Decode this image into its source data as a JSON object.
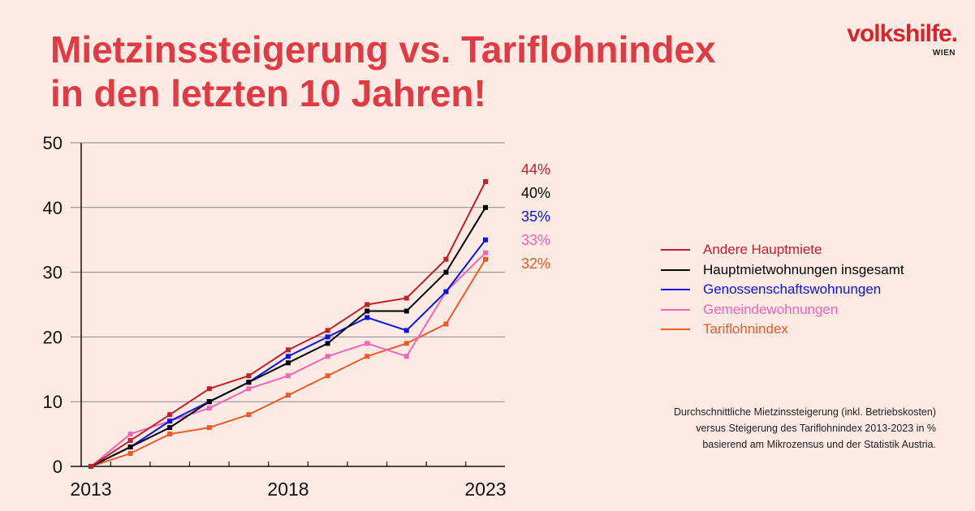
{
  "header": {
    "title_line1": "Mietzinssteigerung vs. Tariflohnindex",
    "title_line2": "in den letzten 10 Jahren!"
  },
  "logo": {
    "name": "volkshilfe.",
    "sub": "WIEN"
  },
  "footnote": {
    "line1": "Durchschnittliche Mietzinssteigerung (inkl. Betriebskosten)",
    "line2": "versus Steigerung des Tariflohnindex 2013-2023 in %",
    "line3": "basierend am Mikrozensus und der Statistik Austria."
  },
  "colors": {
    "background": "#fdeae3",
    "title": "#e03a44"
  },
  "chart_data": {
    "type": "line",
    "title": "",
    "xlabel": "",
    "ylabel": "",
    "ylim": [
      0,
      50
    ],
    "yticks": [
      0,
      10,
      20,
      30,
      40,
      50
    ],
    "xtick_labels": [
      "2013",
      "2018",
      "2023"
    ],
    "x": [
      2013,
      2014,
      2015,
      2016,
      2017,
      2018,
      2019,
      2020,
      2021,
      2022,
      2023
    ],
    "grid": "horizontal",
    "legend_position": "right",
    "series": [
      {
        "name": "Andere Hauptmiete",
        "color": "#c0212e",
        "end_label": "44%",
        "values": [
          0,
          4,
          8,
          12,
          14,
          18,
          21,
          25,
          26,
          32,
          44
        ]
      },
      {
        "name": "Hauptmietwohnungen insgesamt",
        "color": "#000000",
        "end_label": "40%",
        "values": [
          0,
          3,
          6,
          10,
          13,
          16,
          19,
          24,
          24,
          30,
          40
        ]
      },
      {
        "name": "Genossenschaftswohnungen",
        "color": "#0a12e6",
        "end_label": "35%",
        "values": [
          0,
          3,
          7,
          10,
          13,
          17,
          20,
          23,
          21,
          27,
          35
        ]
      },
      {
        "name": "Gemeindewohnungen",
        "color": "#f565b5",
        "end_label": "33%",
        "values": [
          0,
          5,
          7,
          9,
          12,
          14,
          17,
          19,
          17,
          27,
          33
        ]
      },
      {
        "name": "Tariflohnindex",
        "color": "#ee5a28",
        "end_label": "32%",
        "values": [
          0,
          2,
          5,
          6,
          8,
          11,
          14,
          17,
          19,
          22,
          32
        ]
      }
    ]
  }
}
